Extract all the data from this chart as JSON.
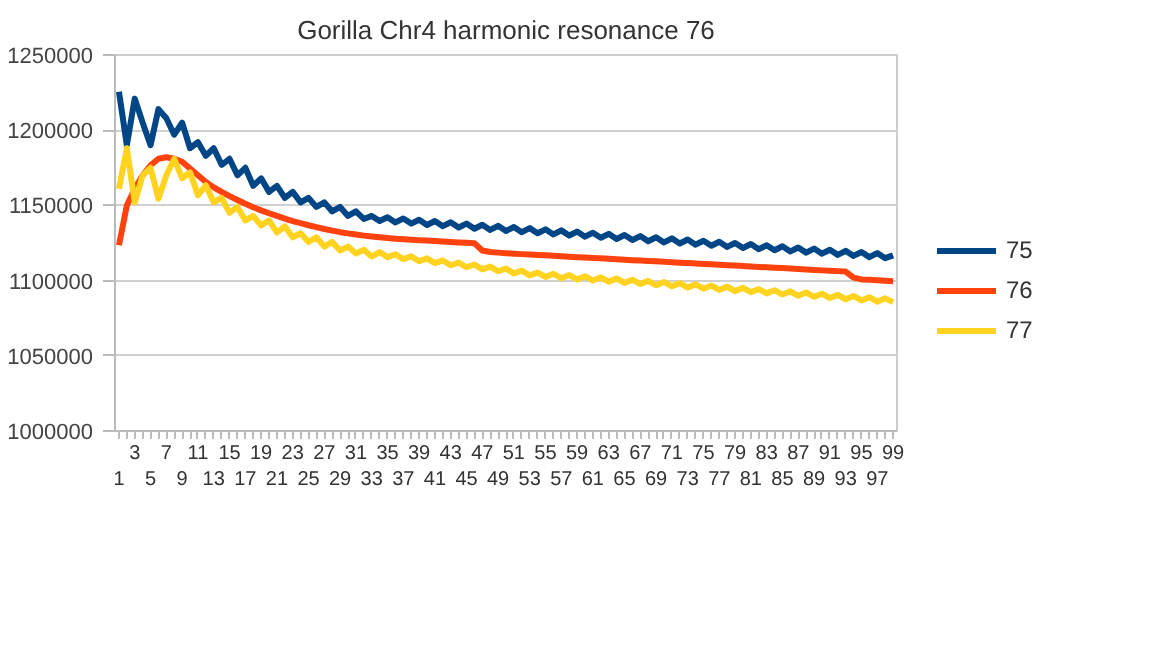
{
  "chart_data": {
    "type": "line",
    "title": "Gorilla Chr4 harmonic resonance 76",
    "categories": [
      "1",
      null,
      "3",
      null,
      "5",
      null,
      "7",
      null,
      "9",
      null,
      "11",
      null,
      "13",
      null,
      "15",
      null,
      "17",
      null,
      "19",
      null,
      "21",
      null,
      "23",
      null,
      "25",
      null,
      "27",
      null,
      "29",
      null,
      "31",
      null,
      "33",
      null,
      "35",
      null,
      "37",
      null,
      "39",
      null,
      "41",
      null,
      "43",
      null,
      "45",
      null,
      "47",
      null,
      "49",
      null,
      "51",
      null,
      "53",
      null,
      "55",
      null,
      "57",
      null,
      "59",
      null,
      "61",
      null,
      "63",
      null,
      "65",
      null,
      "67",
      null,
      "69",
      null,
      "71",
      null,
      "73",
      null,
      "75",
      null,
      "77",
      null,
      "79",
      null,
      "81",
      null,
      "83",
      null,
      "85",
      null,
      "87",
      null,
      "89",
      null,
      "91",
      null,
      "93",
      null,
      "95",
      null,
      "97",
      null,
      "99"
    ],
    "ylim": [
      1000000,
      1250000
    ],
    "yticks": [
      1000000,
      1050000,
      1100000,
      1150000,
      1200000,
      1250000
    ],
    "grid": "y",
    "legend": "right",
    "series": [
      {
        "name": "75",
        "color": "#004586",
        "values": [
          1225600,
          1190000,
          1221000,
          1205000,
          1190000,
          1214000,
          1208000,
          1197000,
          1205000,
          1188000,
          1192000,
          1183000,
          1188000,
          1177000,
          1181000,
          1170000,
          1175000,
          1163000,
          1168000,
          1159000,
          1163000,
          1155000,
          1159000,
          1152000,
          1155000,
          1149000,
          1152000,
          1146000,
          1149000,
          1143000,
          1146000,
          1141000,
          1143000,
          1139600,
          1142100,
          1138700,
          1141300,
          1137900,
          1140500,
          1137000,
          1139600,
          1136200,
          1138800,
          1135300,
          1137900,
          1134500,
          1137100,
          1133700,
          1136400,
          1133000,
          1135600,
          1132200,
          1134900,
          1131500,
          1134100,
          1130700,
          1133400,
          1130000,
          1132600,
          1129200,
          1131800,
          1128500,
          1131100,
          1127700,
          1130300,
          1127000,
          1129600,
          1126200,
          1128800,
          1125400,
          1128100,
          1124700,
          1127300,
          1123900,
          1126500,
          1123200,
          1125800,
          1122400,
          1125000,
          1121700,
          1124300,
          1120900,
          1123500,
          1120200,
          1122800,
          1119400,
          1122000,
          1118600,
          1121300,
          1117900,
          1120500,
          1117100,
          1119800,
          1116400,
          1119000,
          1115600,
          1118300,
          1114900,
          1116800
        ]
      },
      {
        "name": "76",
        "color": "#ff420e",
        "values": [
          1123500,
          1150000,
          1161000,
          1170000,
          1176700,
          1181000,
          1182000,
          1181000,
          1179000,
          1174500,
          1170000,
          1165600,
          1162000,
          1159000,
          1156200,
          1153600,
          1151100,
          1148800,
          1146700,
          1144800,
          1143000,
          1141200,
          1139600,
          1138200,
          1136800,
          1135500,
          1134300,
          1133200,
          1132200,
          1131400,
          1130600,
          1129900,
          1129300,
          1128800,
          1128300,
          1127900,
          1127500,
          1127200,
          1126900,
          1126600,
          1126300,
          1126000,
          1125700,
          1125400,
          1125100,
          1124800,
          1120000,
          1119000,
          1118600,
          1118200,
          1117900,
          1117600,
          1117300,
          1117000,
          1116800,
          1116500,
          1116200,
          1115900,
          1115600,
          1115300,
          1115100,
          1114800,
          1114500,
          1114200,
          1113900,
          1113600,
          1113400,
          1113100,
          1112800,
          1112500,
          1112200,
          1111900,
          1111700,
          1111400,
          1111100,
          1110800,
          1110500,
          1110200,
          1110000,
          1109700,
          1109400,
          1109100,
          1108800,
          1108500,
          1108300,
          1108000,
          1107700,
          1107400,
          1107100,
          1106800,
          1106600,
          1106300,
          1106000,
          1102000,
          1100800,
          1100500,
          1100200,
          1099900,
          1099600
        ]
      },
      {
        "name": "77",
        "color": "#ffd320",
        "values": [
          1161000,
          1188000,
          1152000,
          1170000,
          1175000,
          1154500,
          1170000,
          1181000,
          1168000,
          1172000,
          1156700,
          1163400,
          1152000,
          1155000,
          1145000,
          1149000,
          1140000,
          1143000,
          1136700,
          1140000,
          1132000,
          1136000,
          1128800,
          1131500,
          1125700,
          1128800,
          1122600,
          1125700,
          1120000,
          1122600,
          1118000,
          1120500,
          1116000,
          1119000,
          1115600,
          1117500,
          1114300,
          1116100,
          1112900,
          1114800,
          1111600,
          1113400,
          1110200,
          1112000,
          1108900,
          1110700,
          1107500,
          1109300,
          1106200,
          1108000,
          1104800,
          1106600,
          1103500,
          1105300,
          1102400,
          1104500,
          1101600,
          1103700,
          1100800,
          1102900,
          1100000,
          1102200,
          1099300,
          1101400,
          1098500,
          1100600,
          1097700,
          1099800,
          1096900,
          1099100,
          1096200,
          1098300,
          1095400,
          1097500,
          1094600,
          1096700,
          1093800,
          1096000,
          1093000,
          1095200,
          1092300,
          1094400,
          1091500,
          1093600,
          1090700,
          1092900,
          1089900,
          1092100,
          1089200,
          1091300,
          1088400,
          1090500,
          1087600,
          1089800,
          1086800,
          1089000,
          1086000,
          1088200,
          1085700
        ]
      }
    ]
  }
}
